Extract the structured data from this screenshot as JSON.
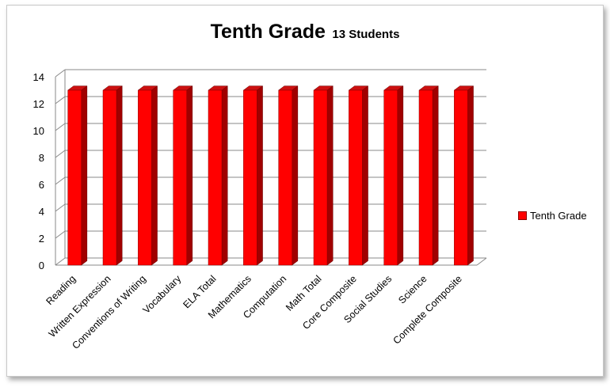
{
  "chart_data": {
    "type": "bar",
    "title": "Tenth Grade",
    "subtitle": "13 Students",
    "categories": [
      "Reading",
      "Written Expression",
      "Conventions of Writing",
      "Vocabulary",
      "ELA Total",
      "Mathematics",
      "Computation",
      "Math Total",
      "Core Composite",
      "Social Studies",
      "Science",
      "Complete Composite"
    ],
    "series": [
      {
        "name": "Tenth Grade",
        "values": [
          13,
          13,
          13,
          13,
          13,
          13,
          13,
          13,
          13,
          13,
          13,
          13
        ]
      }
    ],
    "y_ticks": [
      "0",
      "2",
      "4",
      "6",
      "8",
      "10",
      "12",
      "14"
    ],
    "ylim": [
      0,
      14
    ],
    "grid": true,
    "legend_position": "right",
    "colors": {
      "bar_front": "#ff0000",
      "bar_side": "#a00000",
      "bar_top": "#cc1010"
    }
  }
}
